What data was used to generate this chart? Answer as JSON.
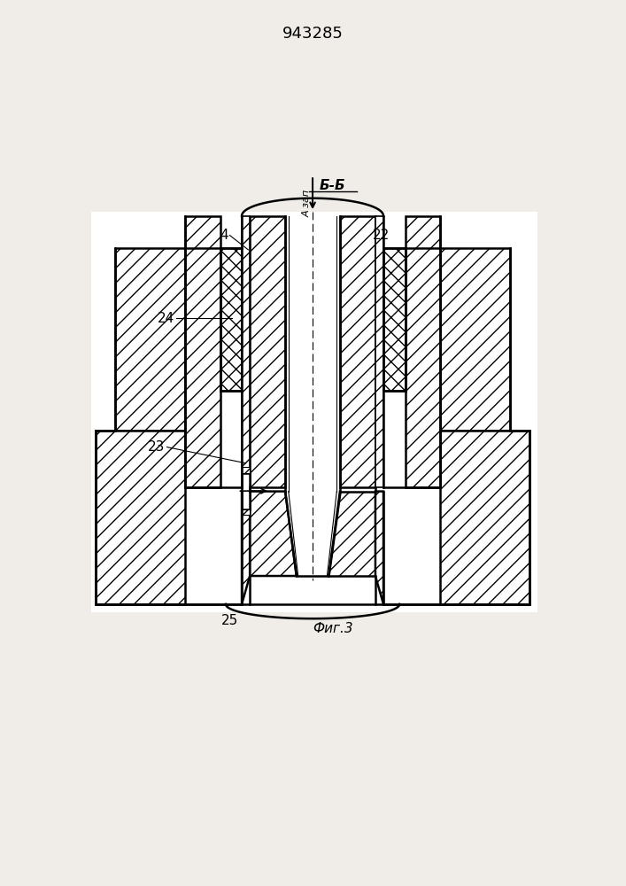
{
  "title": "943285",
  "section_label": "Б-Б",
  "fig_label": "Фиг.3",
  "arrow_label": "А зап",
  "bg_color": "#f0ede8",
  "line_color": "#000000"
}
